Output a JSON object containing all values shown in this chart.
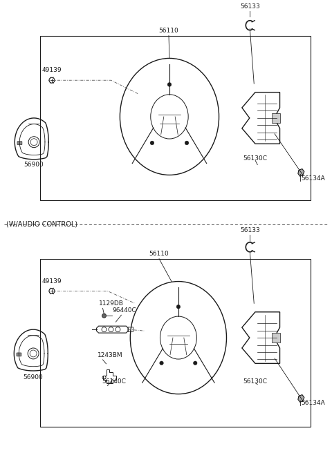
{
  "bg_color": "#ffffff",
  "line_color": "#1a1a1a",
  "text_color": "#1a1a1a",
  "dash_color": "#555555",
  "fig_width": 4.8,
  "fig_height": 6.56,
  "dpi": 100,
  "fs": 6.5,
  "labels": {
    "p1_49139": "49139",
    "p1_56110": "56110",
    "p1_56133": "56133",
    "p1_56130C": "56130C",
    "p1_56134A": "56134A",
    "p1_56900": "56900",
    "p2_waudio": "(W/AUDIO CONTROL)",
    "p2_49139": "49139",
    "p2_56110": "56110",
    "p2_56133": "56133",
    "p2_1129DB": "1129DB",
    "p2_96440C": "96440C",
    "p2_1243BM": "1243BM",
    "p2_56140C": "56140C",
    "p2_56130C": "56130C",
    "p2_56134A": "56134A",
    "p2_56900": "56900"
  }
}
